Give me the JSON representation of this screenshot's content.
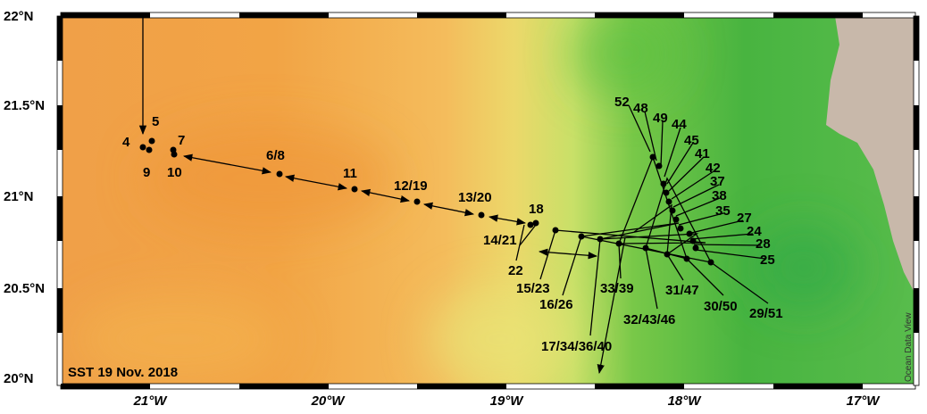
{
  "map": {
    "caption": "SST 19 Nov. 2018",
    "watermark": "Ocean Data View",
    "lon_labels": [
      "21°W",
      "20°W",
      "19°W",
      "18°W",
      "17°W"
    ],
    "lat_labels": [
      "22°N",
      "21.5°N",
      "21°N",
      "20.5°N",
      "20°N"
    ],
    "stations": [
      "4",
      "5",
      "9",
      "7",
      "10",
      "6/8",
      "11",
      "12/19",
      "13/20",
      "18",
      "14/21",
      "22",
      "15/23",
      "16/26",
      "17/34/36/40",
      "33/39",
      "32/43/46",
      "31/47",
      "30/50",
      "29/51",
      "52",
      "48",
      "49",
      "44",
      "45",
      "41",
      "42",
      "37",
      "38",
      "35",
      "27",
      "24",
      "28",
      "25"
    ]
  }
}
